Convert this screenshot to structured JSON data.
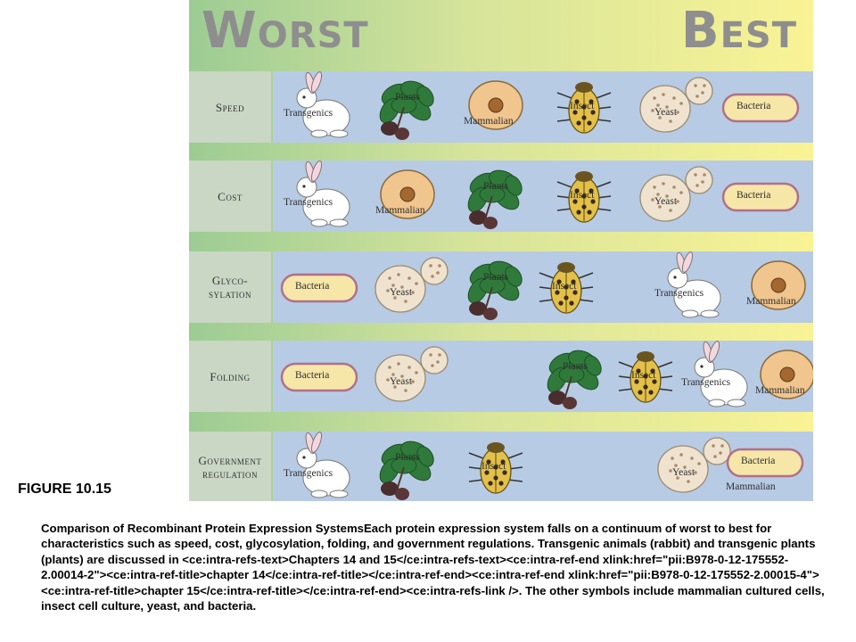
{
  "figure": {
    "header": {
      "worst": "Worst",
      "best": "Best"
    },
    "rows": [
      {
        "label": "Speed",
        "items": [
          {
            "kind": "rabbit",
            "label": "Transgenics",
            "slot": 0
          },
          {
            "kind": "plants",
            "label": "Plants",
            "slot": 1
          },
          {
            "kind": "mammalian",
            "label": "Mammalian",
            "slot": 2
          },
          {
            "kind": "insect",
            "label": "Insect",
            "slot": 3
          },
          {
            "kind": "yeast",
            "label": "Yeast",
            "slot": 4
          },
          {
            "kind": "bacteria",
            "label": "Bacteria",
            "slot": 5
          }
        ]
      },
      {
        "label": "Cost",
        "items": [
          {
            "kind": "rabbit",
            "label": "Transgenics",
            "slot": 0
          },
          {
            "kind": "mammalian",
            "label": "Mammalian",
            "slot": 1
          },
          {
            "kind": "plants",
            "label": "Plants",
            "slot": 2
          },
          {
            "kind": "insect",
            "label": "Insect",
            "slot": 3
          },
          {
            "kind": "yeast",
            "label": "Yeast",
            "slot": 4
          },
          {
            "kind": "bacteria",
            "label": "Bacteria",
            "slot": 5
          }
        ]
      },
      {
        "label": "Glyco-\nsylation",
        "items": [
          {
            "kind": "bacteria",
            "label": "Bacteria",
            "slot": 0
          },
          {
            "kind": "yeast",
            "label": "Yeast",
            "slot": 1
          },
          {
            "kind": "plants",
            "label": "Plants",
            "slot": 2
          },
          {
            "kind": "insect",
            "label": "Insect",
            "slot": 2.8
          },
          {
            "kind": "rabbit",
            "label": "Transgenics",
            "slot": 4.2
          },
          {
            "kind": "mammalian",
            "label": "Mammalian",
            "slot": 5.2
          }
        ]
      },
      {
        "label": "Folding",
        "items": [
          {
            "kind": "bacteria",
            "label": "Bacteria",
            "slot": 0
          },
          {
            "kind": "yeast",
            "label": "Yeast",
            "slot": 1
          },
          {
            "kind": "plants",
            "label": "Plants",
            "slot": 2.9
          },
          {
            "kind": "insect",
            "label": "Insect",
            "slot": 3.7
          },
          {
            "kind": "rabbit",
            "label": "Transgenics",
            "slot": 4.5
          },
          {
            "kind": "mammalian",
            "label": "Mammalian",
            "slot": 5.3
          }
        ]
      },
      {
        "label": "Government\nregulation",
        "items": [
          {
            "kind": "rabbit",
            "label": "Transgenics",
            "slot": 0
          },
          {
            "kind": "plants",
            "label": "Plants",
            "slot": 1
          },
          {
            "kind": "insect",
            "label": "Insect",
            "slot": 2
          },
          {
            "kind": "yeast",
            "label": "Yeast",
            "slot": 4.2
          },
          {
            "kind": "bacteria",
            "label": "Bacteria",
            "slot": 5.05
          },
          {
            "kind": "mammalian",
            "label": "Mammalian",
            "slot": 5.05
          }
        ]
      }
    ],
    "colors": {
      "gradient_left": "#9ccc94",
      "gradient_right": "#f9f395",
      "row_bg": "#b8cbe4",
      "label_bg": "#c9d7c4"
    }
  },
  "figure_number": "FIGURE 10.15",
  "caption": "Comparison of Recombinant Protein Expression SystemsEach protein expression system falls on a continuum of worst to best for characteristics such as speed, cost, glycosylation, folding, and government regulations. Transgenic animals (rabbit) and transgenic plants (plants) are discussed in <ce:intra-refs-text>Chapters 14 and 15</ce:intra-refs-text><ce:intra-ref-end xlink:href=\"pii:B978-0-12-175552-2.00014-2\"><ce:intra-ref-title>chapter 14</ce:intra-ref-title></ce:intra-ref-end><ce:intra-ref-end xlink:href=\"pii:B978-0-12-175552-2.00015-4\"><ce:intra-ref-title>chapter 15</ce:intra-ref-title></ce:intra-ref-end><ce:intra-refs-link />. The other symbols include mammalian cultured cells, insect cell culture, yeast, and bacteria."
}
